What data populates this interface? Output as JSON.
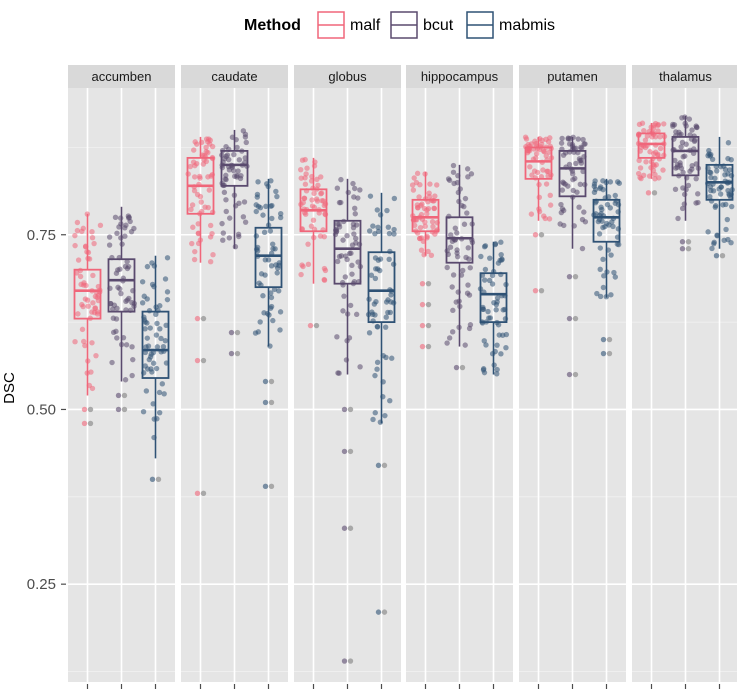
{
  "chart_data": {
    "type": "boxplot",
    "title": "",
    "xlabel": "",
    "ylabel": "DSC",
    "ylim": [
      0.11,
      0.96
    ],
    "yticks": [
      0.25,
      0.5,
      0.75
    ],
    "ytick_labels": [
      "0.25",
      "0.50",
      "0.75"
    ],
    "legend": {
      "title": "Method",
      "placement": "top",
      "entries": [
        {
          "name": "malf",
          "color": "#f0667a"
        },
        {
          "name": "bcut",
          "color": "#5a4a6e"
        },
        {
          "name": "mabmis",
          "color": "#2f5275"
        }
      ]
    },
    "facets": [
      "accumben",
      "caudate",
      "globus",
      "hippocampus",
      "putamen",
      "thalamus"
    ],
    "boxes": {
      "accumben": [
        {
          "method": "malf",
          "q1": 0.63,
          "median": 0.67,
          "q3": 0.7,
          "whisker_low": 0.52,
          "whisker_high": 0.78,
          "outliers": [
            0.5,
            0.48
          ]
        },
        {
          "method": "bcut",
          "q1": 0.64,
          "median": 0.685,
          "q3": 0.715,
          "whisker_low": 0.54,
          "whisker_high": 0.79,
          "outliers": [
            0.52,
            0.5
          ]
        },
        {
          "method": "mabmis",
          "q1": 0.545,
          "median": 0.585,
          "q3": 0.64,
          "whisker_low": 0.43,
          "whisker_high": 0.72,
          "outliers": [
            0.4
          ]
        }
      ],
      "caudate": [
        {
          "method": "malf",
          "q1": 0.78,
          "median": 0.82,
          "q3": 0.86,
          "whisker_low": 0.71,
          "whisker_high": 0.89,
          "outliers": [
            0.63,
            0.57,
            0.38
          ]
        },
        {
          "method": "bcut",
          "q1": 0.82,
          "median": 0.85,
          "q3": 0.87,
          "whisker_low": 0.73,
          "whisker_high": 0.9,
          "outliers": [
            0.61,
            0.58
          ]
        },
        {
          "method": "mabmis",
          "q1": 0.675,
          "median": 0.72,
          "q3": 0.76,
          "whisker_low": 0.59,
          "whisker_high": 0.83,
          "outliers": [
            0.54,
            0.51,
            0.39
          ]
        }
      ],
      "globus": [
        {
          "method": "malf",
          "q1": 0.755,
          "median": 0.785,
          "q3": 0.815,
          "whisker_low": 0.68,
          "whisker_high": 0.86,
          "outliers": [
            0.62
          ]
        },
        {
          "method": "bcut",
          "q1": 0.68,
          "median": 0.73,
          "q3": 0.77,
          "whisker_low": 0.55,
          "whisker_high": 0.83,
          "outliers": [
            0.5,
            0.44,
            0.33,
            0.14
          ]
        },
        {
          "method": "mabmis",
          "q1": 0.625,
          "median": 0.67,
          "q3": 0.725,
          "whisker_low": 0.48,
          "whisker_high": 0.81,
          "outliers": [
            0.42,
            0.21
          ]
        }
      ],
      "hippocampus": [
        {
          "method": "malf",
          "q1": 0.755,
          "median": 0.775,
          "q3": 0.8,
          "whisker_low": 0.72,
          "whisker_high": 0.84,
          "outliers": [
            0.68,
            0.65,
            0.62,
            0.59
          ]
        },
        {
          "method": "bcut",
          "q1": 0.71,
          "median": 0.745,
          "q3": 0.775,
          "whisker_low": 0.59,
          "whisker_high": 0.85,
          "outliers": [
            0.56
          ]
        },
        {
          "method": "mabmis",
          "q1": 0.625,
          "median": 0.665,
          "q3": 0.695,
          "whisker_low": 0.55,
          "whisker_high": 0.74,
          "outliers": []
        }
      ],
      "putamen": [
        {
          "method": "malf",
          "q1": 0.83,
          "median": 0.855,
          "q3": 0.875,
          "whisker_low": 0.77,
          "whisker_high": 0.89,
          "outliers": [
            0.75,
            0.67
          ]
        },
        {
          "method": "bcut",
          "q1": 0.805,
          "median": 0.845,
          "q3": 0.87,
          "whisker_low": 0.73,
          "whisker_high": 0.89,
          "outliers": [
            0.69,
            0.63,
            0.55
          ]
        },
        {
          "method": "mabmis",
          "q1": 0.74,
          "median": 0.775,
          "q3": 0.8,
          "whisker_low": 0.66,
          "whisker_high": 0.83,
          "outliers": [
            0.6,
            0.58
          ]
        }
      ],
      "thalamus": [
        {
          "method": "malf",
          "q1": 0.86,
          "median": 0.88,
          "q3": 0.895,
          "whisker_low": 0.83,
          "whisker_high": 0.91,
          "outliers": [
            0.81
          ]
        },
        {
          "method": "bcut",
          "q1": 0.835,
          "median": 0.87,
          "q3": 0.89,
          "whisker_low": 0.77,
          "whisker_high": 0.92,
          "outliers": [
            0.74,
            0.73
          ]
        },
        {
          "method": "mabmis",
          "q1": 0.8,
          "median": 0.825,
          "q3": 0.85,
          "whisker_low": 0.73,
          "whisker_high": 0.89,
          "outliers": [
            0.72
          ]
        }
      ]
    }
  }
}
